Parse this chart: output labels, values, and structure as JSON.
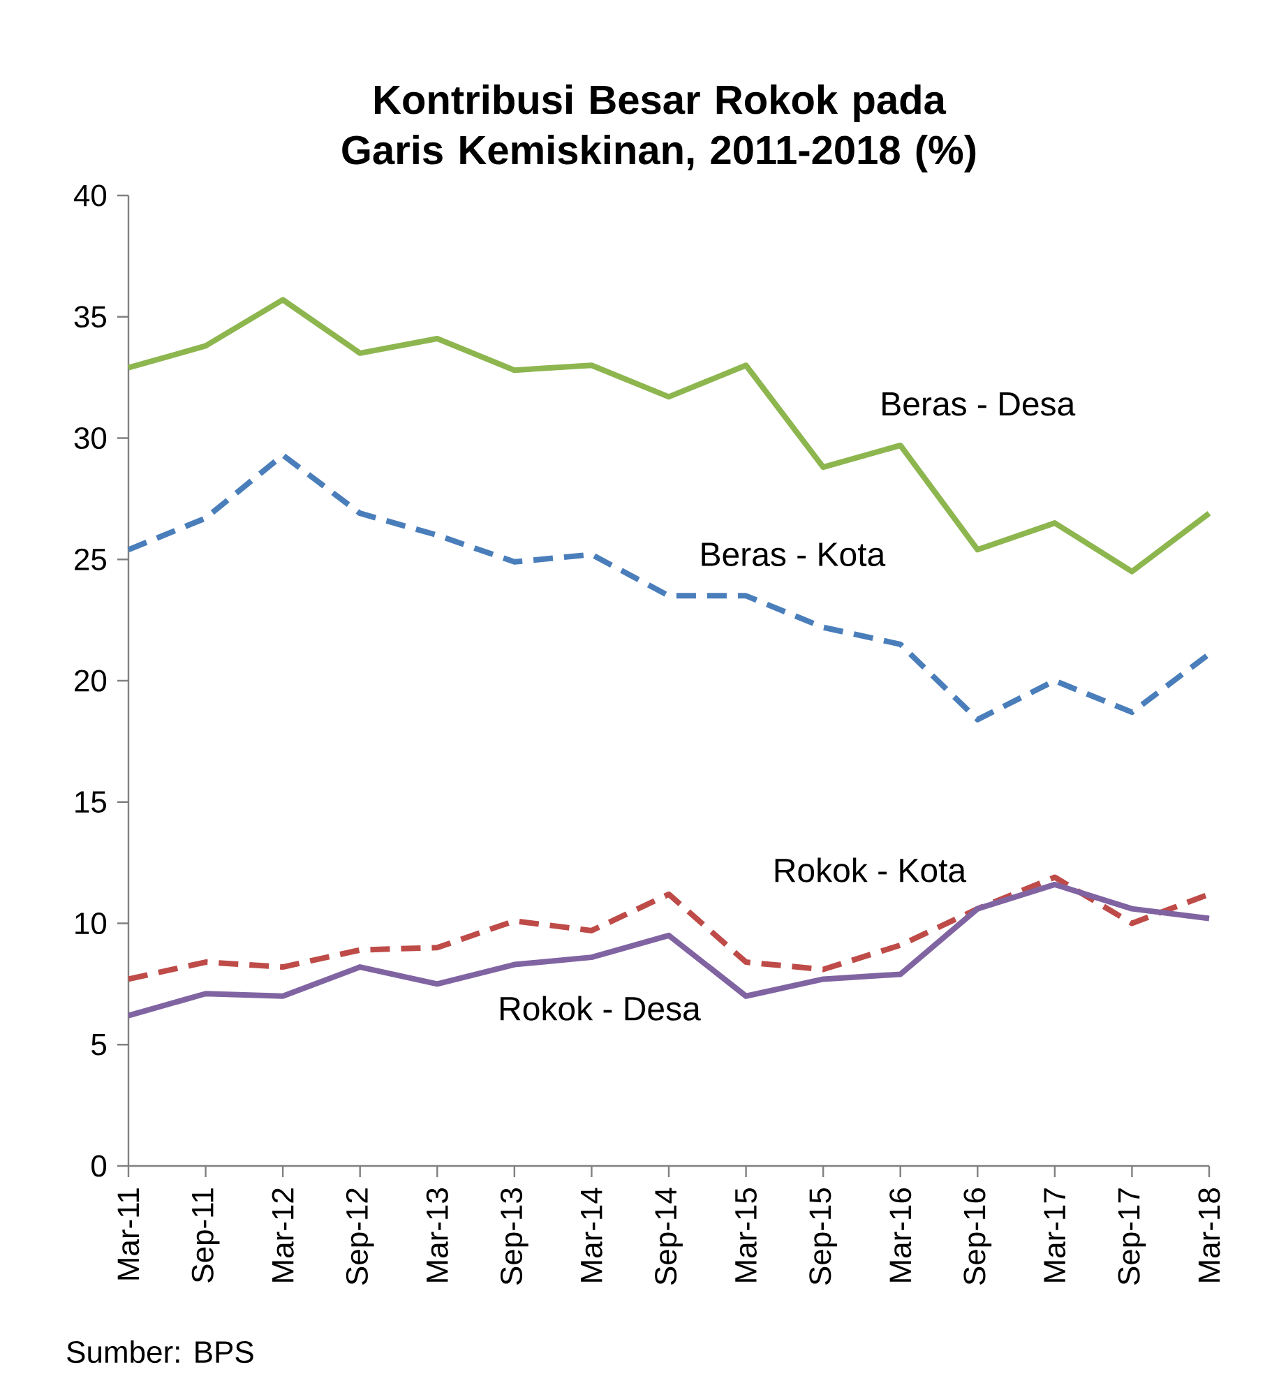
{
  "chart_data": {
    "type": "line",
    "title": "Kontribusi Besar Rokok pada Garis Kemiskinan, 2011-2018 (%)",
    "categories": [
      "Mar-11",
      "Sep-11",
      "Mar-12",
      "Sep-12",
      "Mar-13",
      "Sep-13",
      "Mar-14",
      "Sep-14",
      "Mar-15",
      "Sep-15",
      "Mar-16",
      "Sep-16",
      "Mar-17",
      "Sep-17",
      "Mar-18"
    ],
    "series": [
      {
        "name": "Beras - Desa",
        "color": "#8db64f",
        "line_style": "solid",
        "values": [
          32.9,
          33.8,
          35.7,
          33.5,
          34.1,
          32.8,
          33.0,
          31.7,
          33.0,
          28.8,
          29.7,
          25.4,
          26.5,
          24.5,
          26.9
        ]
      },
      {
        "name": "Beras - Kota",
        "color": "#4a7ebb",
        "line_style": "dashed",
        "values": [
          25.4,
          26.7,
          29.3,
          26.9,
          26.0,
          24.9,
          25.2,
          23.5,
          23.5,
          22.2,
          21.5,
          18.4,
          20.0,
          18.7,
          21.1
        ]
      },
      {
        "name": "Rokok - Kota",
        "color": "#be4b48",
        "line_style": "dashed",
        "values": [
          7.7,
          8.4,
          8.2,
          8.9,
          9.0,
          10.1,
          9.7,
          11.2,
          8.4,
          8.1,
          9.1,
          10.6,
          11.9,
          10.0,
          11.2
        ]
      },
      {
        "name": "Rokok - Desa",
        "color": "#8064a2",
        "line_style": "solid",
        "values": [
          6.2,
          7.1,
          7.0,
          8.2,
          7.5,
          8.3,
          8.6,
          9.5,
          7.0,
          7.7,
          7.9,
          10.6,
          11.6,
          10.6,
          10.2
        ]
      }
    ],
    "ylim": [
      0,
      40
    ],
    "yticks": [
      0,
      5,
      10,
      15,
      20,
      25,
      30,
      35,
      40
    ],
    "grid": false,
    "marker": "none",
    "annotations": [
      "Sumber: BPS"
    ]
  }
}
